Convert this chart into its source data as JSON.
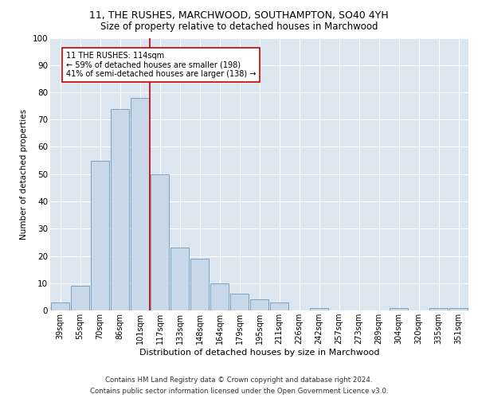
{
  "title1": "11, THE RUSHES, MARCHWOOD, SOUTHAMPTON, SO40 4YH",
  "title2": "Size of property relative to detached houses in Marchwood",
  "xlabel": "Distribution of detached houses by size in Marchwood",
  "ylabel": "Number of detached properties",
  "bar_labels": [
    "39sqm",
    "55sqm",
    "70sqm",
    "86sqm",
    "101sqm",
    "117sqm",
    "133sqm",
    "148sqm",
    "164sqm",
    "179sqm",
    "195sqm",
    "211sqm",
    "226sqm",
    "242sqm",
    "257sqm",
    "273sqm",
    "289sqm",
    "304sqm",
    "320sqm",
    "335sqm",
    "351sqm"
  ],
  "bar_values": [
    3,
    9,
    55,
    74,
    78,
    50,
    23,
    19,
    10,
    6,
    4,
    3,
    0,
    1,
    0,
    0,
    0,
    1,
    0,
    1,
    1
  ],
  "bar_color": "#c8d8e8",
  "bar_edge_color": "#5a8ab0",
  "background_color": "#dce6f0",
  "vline_index": 5,
  "vline_color": "#cc0000",
  "annotation_text": "11 THE RUSHES: 114sqm\n← 59% of detached houses are smaller (198)\n41% of semi-detached houses are larger (138) →",
  "annotation_box_color": "#ffffff",
  "annotation_box_edge": "#cc0000",
  "ylim": [
    0,
    100
  ],
  "yticks": [
    0,
    10,
    20,
    30,
    40,
    50,
    60,
    70,
    80,
    90,
    100
  ],
  "footer1": "Contains HM Land Registry data © Crown copyright and database right 2024.",
  "footer2": "Contains public sector information licensed under the Open Government Licence v3.0."
}
